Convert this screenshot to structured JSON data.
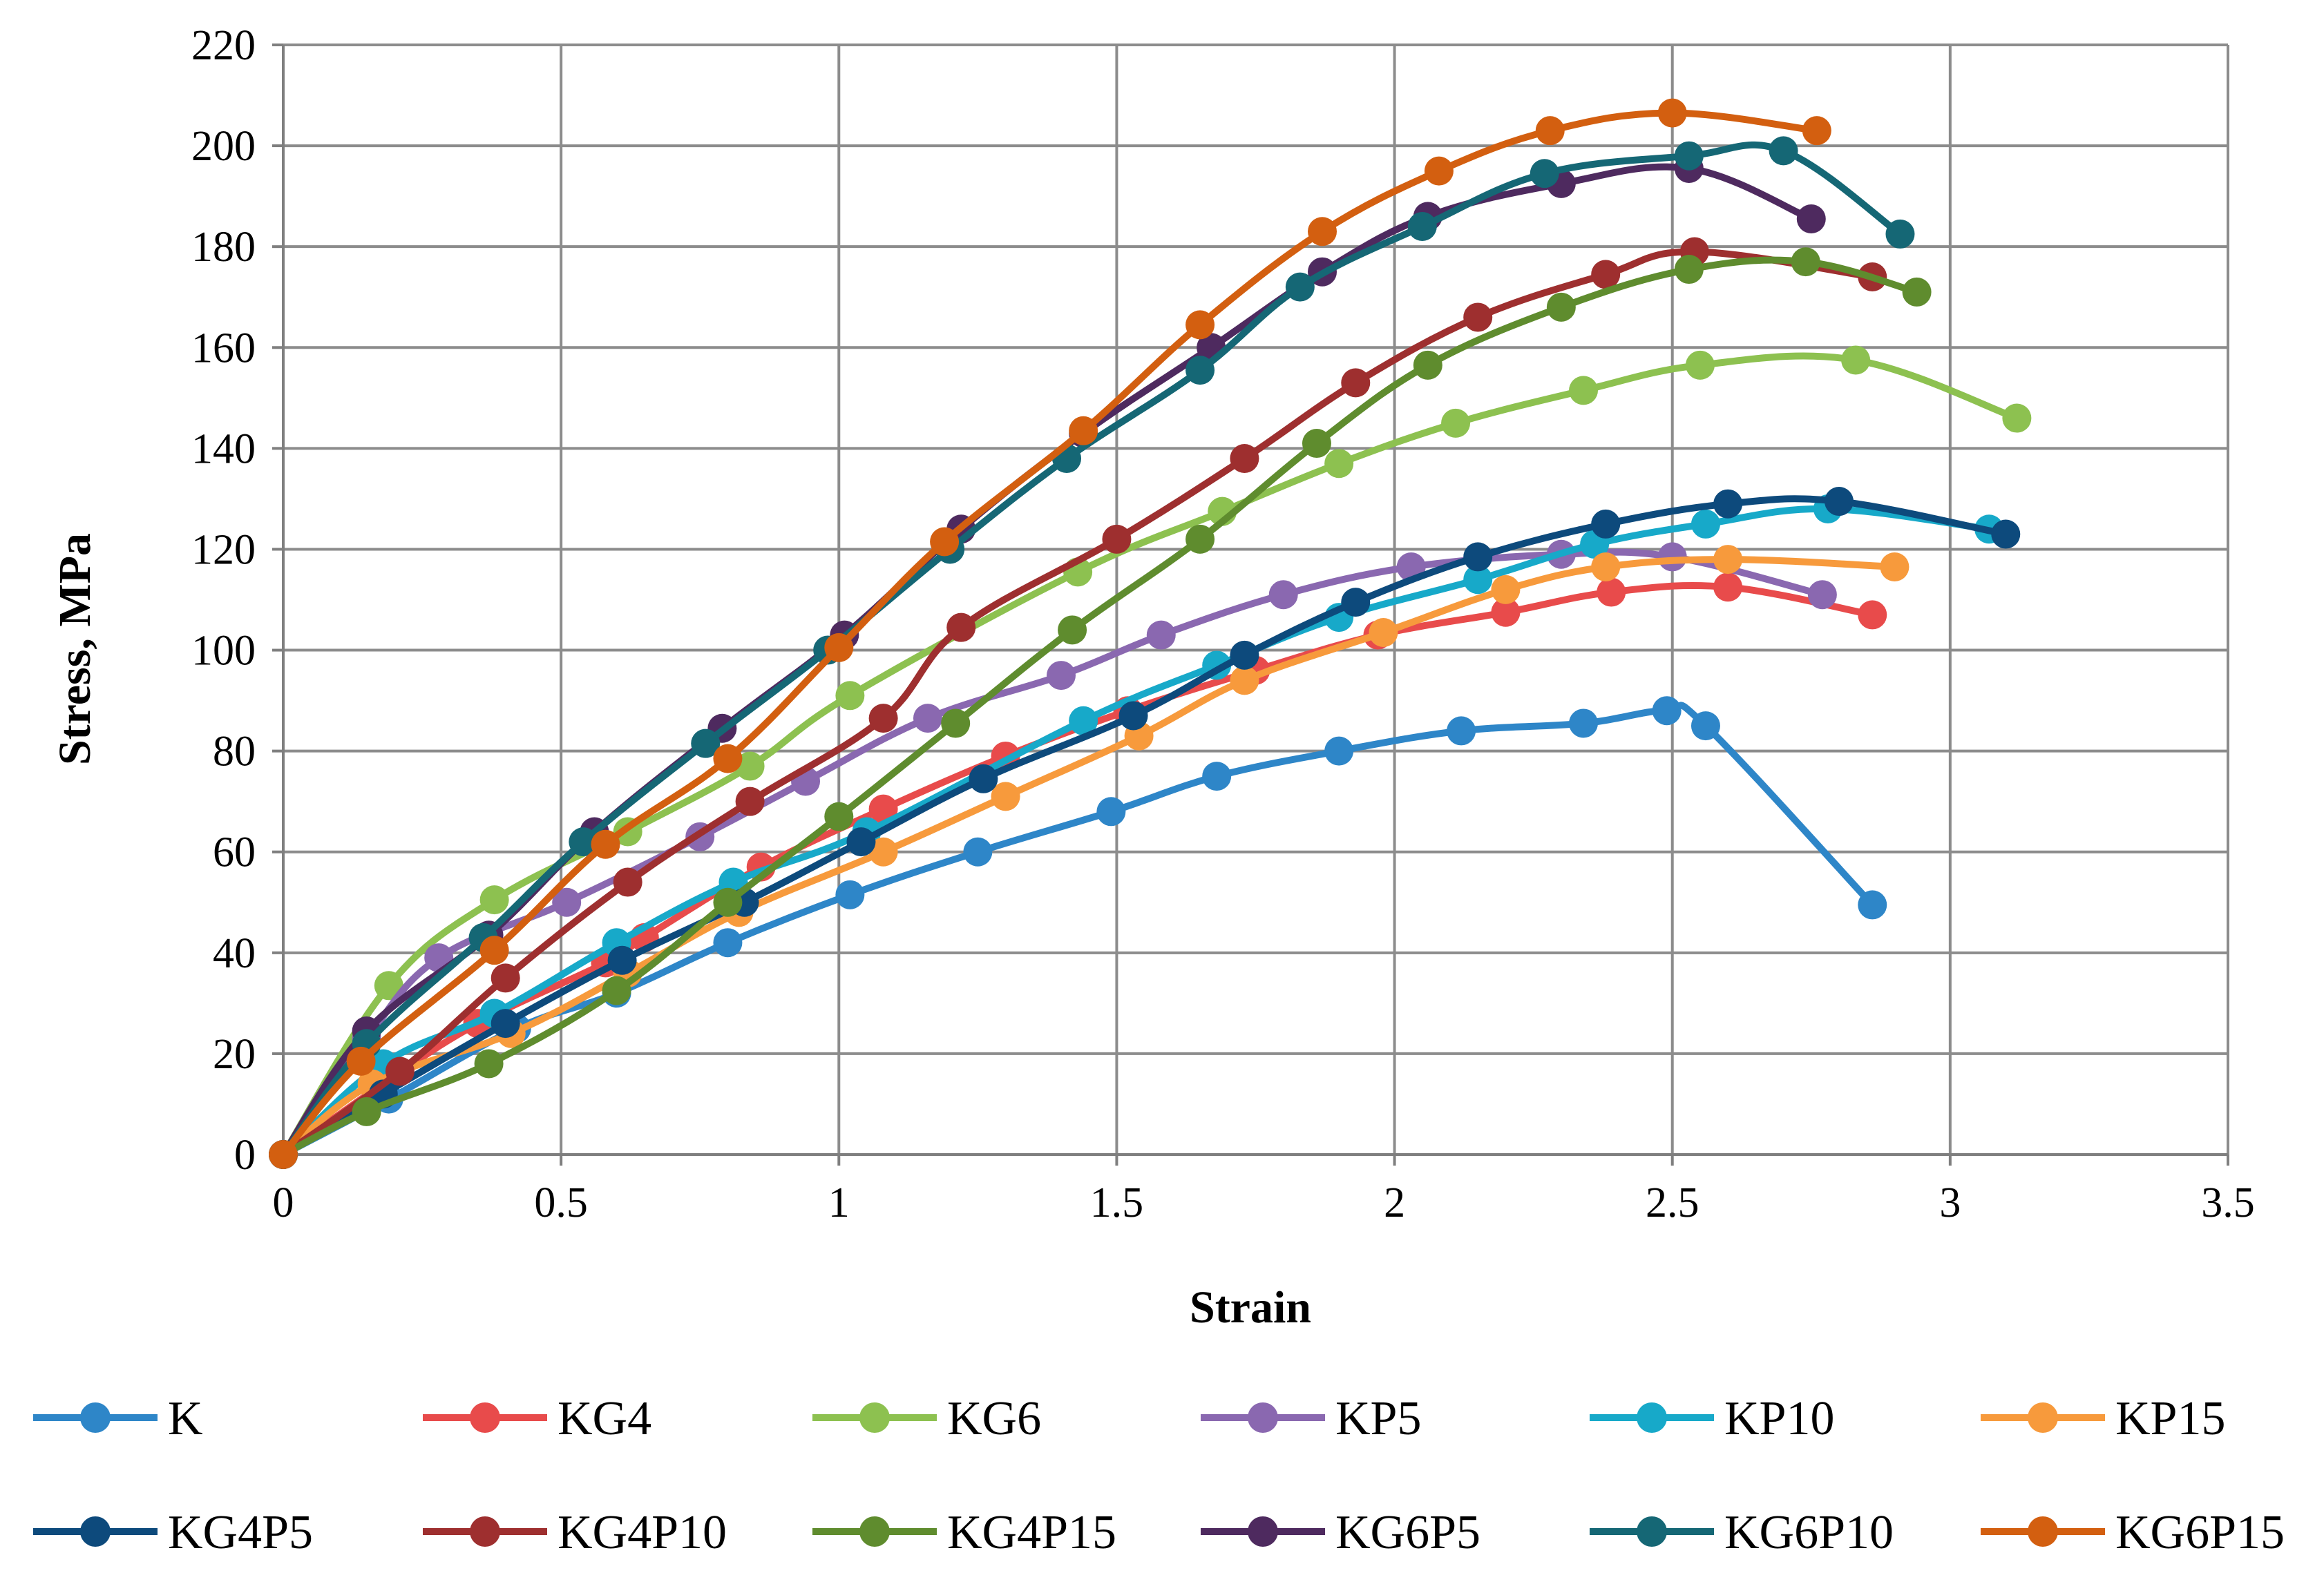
{
  "chart_data": {
    "type": "line",
    "title": "",
    "xlabel": "Strain",
    "ylabel": "Stress, MPa",
    "xlim": [
      0,
      3.5
    ],
    "ylim": [
      0,
      220
    ],
    "x_ticks": [
      "0",
      "0.5",
      "1",
      "1.5",
      "2",
      "2.5",
      "3",
      "3.5"
    ],
    "y_ticks": [
      "0",
      "20",
      "40",
      "60",
      "80",
      "100",
      "120",
      "140",
      "160",
      "180",
      "200",
      "220"
    ],
    "grid": true,
    "legend_position": "bottom",
    "series": [
      {
        "name": "K",
        "color": "#2E86C8",
        "points": [
          [
            0,
            0
          ],
          [
            0.19,
            11
          ],
          [
            0.42,
            25
          ],
          [
            0.6,
            32
          ],
          [
            0.8,
            42
          ],
          [
            1.02,
            51.5
          ],
          [
            1.25,
            60
          ],
          [
            1.49,
            68
          ],
          [
            1.68,
            75
          ],
          [
            1.9,
            80
          ],
          [
            2.12,
            84
          ],
          [
            2.34,
            85.5
          ],
          [
            2.49,
            88
          ],
          [
            2.56,
            85
          ],
          [
            2.86,
            49.5
          ]
        ]
      },
      {
        "name": "KG4",
        "color": "#E84B4B",
        "points": [
          [
            0,
            0
          ],
          [
            0.18,
            14
          ],
          [
            0.35,
            26
          ],
          [
            0.58,
            38
          ],
          [
            0.65,
            43
          ],
          [
            0.86,
            57
          ],
          [
            1.08,
            68.5
          ],
          [
            1.3,
            79
          ],
          [
            1.52,
            88
          ],
          [
            1.75,
            96
          ],
          [
            1.97,
            103
          ],
          [
            2.2,
            107.5
          ],
          [
            2.39,
            111.5
          ],
          [
            2.6,
            112.5
          ],
          [
            2.86,
            107
          ]
        ]
      },
      {
        "name": "KG6",
        "color": "#8DC150",
        "points": [
          [
            0,
            0
          ],
          [
            0.19,
            33.5
          ],
          [
            0.38,
            50.5
          ],
          [
            0.62,
            64
          ],
          [
            0.84,
            77
          ],
          [
            1.02,
            91
          ],
          [
            1.43,
            115.5
          ],
          [
            1.69,
            127.5
          ],
          [
            1.9,
            137
          ],
          [
            2.11,
            145
          ],
          [
            2.34,
            151.5
          ],
          [
            2.55,
            156.5
          ],
          [
            2.83,
            157.5
          ],
          [
            3.12,
            146
          ]
        ]
      },
      {
        "name": "KP5",
        "color": "#8A68B0",
        "points": [
          [
            0,
            0
          ],
          [
            0.15,
            23
          ],
          [
            0.28,
            39
          ],
          [
            0.51,
            50
          ],
          [
            0.75,
            63
          ],
          [
            0.94,
            74
          ],
          [
            1.16,
            86.5
          ],
          [
            1.4,
            95
          ],
          [
            1.58,
            103
          ],
          [
            1.8,
            111
          ],
          [
            2.03,
            116.5
          ],
          [
            2.3,
            119
          ],
          [
            2.5,
            118.5
          ],
          [
            2.77,
            111
          ]
        ]
      },
      {
        "name": "KP10",
        "color": "#17A9C9",
        "points": [
          [
            0,
            0
          ],
          [
            0.18,
            18
          ],
          [
            0.38,
            28
          ],
          [
            0.6,
            42
          ],
          [
            0.81,
            54
          ],
          [
            1.05,
            64
          ],
          [
            1.44,
            86
          ],
          [
            1.68,
            97
          ],
          [
            1.9,
            106.5
          ],
          [
            2.15,
            114
          ],
          [
            2.36,
            121
          ],
          [
            2.56,
            125
          ],
          [
            2.78,
            128
          ],
          [
            3.07,
            124
          ]
        ]
      },
      {
        "name": "KP15",
        "color": "#F79A3C",
        "points": [
          [
            0,
            0
          ],
          [
            0.16,
            14
          ],
          [
            0.41,
            24
          ],
          [
            0.62,
            36
          ],
          [
            0.82,
            48
          ],
          [
            1.08,
            60
          ],
          [
            1.3,
            71
          ],
          [
            1.54,
            83
          ],
          [
            1.73,
            94
          ],
          [
            1.98,
            103.5
          ],
          [
            2.2,
            112
          ],
          [
            2.38,
            116.5
          ],
          [
            2.6,
            118
          ],
          [
            2.9,
            116.5
          ]
        ]
      },
      {
        "name": "KG4P5",
        "color": "#0D4A7C",
        "points": [
          [
            0,
            0
          ],
          [
            0.18,
            12
          ],
          [
            0.4,
            26
          ],
          [
            0.61,
            38.5
          ],
          [
            0.83,
            50
          ],
          [
            1.04,
            62
          ],
          [
            1.26,
            74.5
          ],
          [
            1.53,
            87
          ],
          [
            1.73,
            99
          ],
          [
            1.93,
            109.5
          ],
          [
            2.15,
            118.5
          ],
          [
            2.38,
            125
          ],
          [
            2.6,
            129
          ],
          [
            2.8,
            129.5
          ],
          [
            3.1,
            123
          ]
        ]
      },
      {
        "name": "KG4P10",
        "color": "#9E2F2F",
        "points": [
          [
            0,
            0
          ],
          [
            0.21,
            16.5
          ],
          [
            0.4,
            35
          ],
          [
            0.62,
            54
          ],
          [
            0.84,
            70
          ],
          [
            1.08,
            86.5
          ],
          [
            1.22,
            104.5
          ],
          [
            1.5,
            122
          ],
          [
            1.73,
            138
          ],
          [
            1.93,
            153
          ],
          [
            2.15,
            166
          ],
          [
            2.38,
            174.5
          ],
          [
            2.54,
            179
          ],
          [
            2.86,
            174
          ]
        ]
      },
      {
        "name": "KG4P15",
        "color": "#5F8C2E",
        "points": [
          [
            0,
            0
          ],
          [
            0.15,
            8.5
          ],
          [
            0.37,
            18
          ],
          [
            0.6,
            32.5
          ],
          [
            0.8,
            50
          ],
          [
            1.0,
            67
          ],
          [
            1.21,
            85.5
          ],
          [
            1.42,
            104
          ],
          [
            1.65,
            122
          ],
          [
            1.86,
            141
          ],
          [
            2.06,
            156.5
          ],
          [
            2.3,
            168
          ],
          [
            2.53,
            175.5
          ],
          [
            2.74,
            177
          ],
          [
            2.94,
            171
          ]
        ]
      },
      {
        "name": "KG6P5",
        "color": "#4E2A5F",
        "points": [
          [
            0,
            0
          ],
          [
            0.15,
            24.5
          ],
          [
            0.37,
            43.5
          ],
          [
            0.56,
            64
          ],
          [
            0.79,
            84.5
          ],
          [
            1.01,
            103
          ],
          [
            1.22,
            124
          ],
          [
            1.44,
            143
          ],
          [
            1.67,
            160
          ],
          [
            1.87,
            175
          ],
          [
            2.06,
            186
          ],
          [
            2.3,
            192.5
          ],
          [
            2.53,
            195.5
          ],
          [
            2.75,
            185.5
          ]
        ]
      },
      {
        "name": "KG6P10",
        "color": "#156775",
        "points": [
          [
            0,
            0
          ],
          [
            0.15,
            22
          ],
          [
            0.36,
            43
          ],
          [
            0.54,
            62
          ],
          [
            0.76,
            81.5
          ],
          [
            0.98,
            100
          ],
          [
            1.2,
            120
          ],
          [
            1.41,
            138
          ],
          [
            1.65,
            155.5
          ],
          [
            1.83,
            172
          ],
          [
            2.05,
            184
          ],
          [
            2.27,
            194.5
          ],
          [
            2.53,
            198
          ],
          [
            2.7,
            199
          ],
          [
            2.91,
            182.5
          ]
        ]
      },
      {
        "name": "KG6P15",
        "color": "#D35F10",
        "points": [
          [
            0,
            0
          ],
          [
            0.14,
            18.5
          ],
          [
            0.38,
            40.5
          ],
          [
            0.58,
            61.5
          ],
          [
            0.8,
            78.5
          ],
          [
            1.0,
            100.5
          ],
          [
            1.19,
            121.5
          ],
          [
            1.44,
            143.5
          ],
          [
            1.65,
            164.5
          ],
          [
            1.87,
            183
          ],
          [
            2.08,
            195
          ],
          [
            2.28,
            203
          ],
          [
            2.5,
            206.5
          ],
          [
            2.76,
            203
          ]
        ]
      }
    ]
  }
}
